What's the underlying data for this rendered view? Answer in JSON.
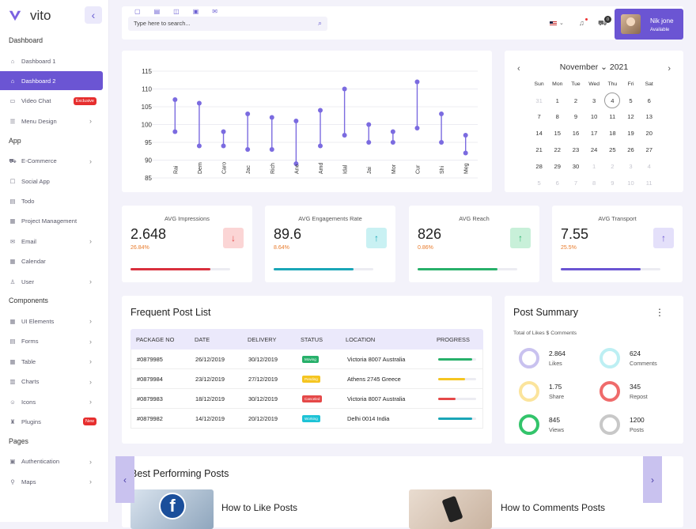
{
  "app": {
    "name": "vito"
  },
  "sidebar": {
    "sections": [
      {
        "title": "Dashboard",
        "items": [
          {
            "label": "Dashboard 1"
          },
          {
            "label": "Dashboard 2",
            "active": true
          },
          {
            "label": "Video Chat",
            "badge": "Exclusive"
          },
          {
            "label": "Menu Design",
            "chevron": true
          }
        ]
      },
      {
        "title": "App",
        "items": [
          {
            "label": "E-Commerce",
            "chevron": true
          },
          {
            "label": "Social App"
          },
          {
            "label": "Todo"
          },
          {
            "label": "Project Management"
          },
          {
            "label": "Email",
            "chevron": true
          },
          {
            "label": "Calendar"
          },
          {
            "label": "User",
            "chevron": true
          }
        ]
      },
      {
        "title": "Components",
        "items": [
          {
            "label": "UI Elements",
            "chevron": true
          },
          {
            "label": "Forms",
            "chevron": true
          },
          {
            "label": "Table",
            "chevron": true
          },
          {
            "label": "Charts",
            "chevron": true
          },
          {
            "label": "Icons",
            "chevron": true
          },
          {
            "label": "Plugins",
            "badge": "New"
          }
        ]
      },
      {
        "title": "Pages",
        "items": [
          {
            "label": "Authentication",
            "chevron": true
          },
          {
            "label": "Maps",
            "chevron": true
          }
        ]
      }
    ]
  },
  "topbar": {
    "search_placeholder": "Type here to search...",
    "cart_count": "0",
    "user": {
      "name": "Nik jone",
      "role": "Available"
    }
  },
  "chart_data": {
    "type": "dumbbell",
    "categories": [
      "Rai",
      "Dem",
      "Caro",
      "Jac",
      "Rich",
      "Ane",
      "Amd",
      "Idal",
      "Jai",
      "Mor",
      "Cur",
      "Shi",
      "Meg"
    ],
    "low": [
      98,
      94,
      94,
      93,
      93,
      89,
      94,
      97,
      95,
      95,
      99,
      95,
      92
    ],
    "high": [
      107,
      106,
      98,
      103,
      102,
      101,
      104,
      110,
      100,
      98,
      112,
      103,
      97
    ],
    "y_ticks": [
      85,
      90,
      95,
      100,
      105,
      110,
      115
    ],
    "ylim": [
      85,
      117
    ],
    "color": "#7b6be0",
    "grid": true
  },
  "calendar": {
    "month": "November",
    "year": "2021",
    "dow": [
      "Sun",
      "Mon",
      "Tue",
      "Wed",
      "Thu",
      "Fri",
      "Sat"
    ],
    "days": [
      [
        "31",
        1
      ],
      [
        "1",
        0
      ],
      [
        "2",
        0
      ],
      [
        "3",
        0
      ],
      [
        "4",
        2
      ],
      [
        "5",
        0
      ],
      [
        "6",
        0
      ],
      [
        "7",
        0
      ],
      [
        "8",
        0
      ],
      [
        "9",
        0
      ],
      [
        "10",
        0
      ],
      [
        "11",
        0
      ],
      [
        "12",
        0
      ],
      [
        "13",
        0
      ],
      [
        "14",
        0
      ],
      [
        "15",
        0
      ],
      [
        "16",
        0
      ],
      [
        "17",
        0
      ],
      [
        "18",
        0
      ],
      [
        "19",
        0
      ],
      [
        "20",
        0
      ],
      [
        "21",
        0
      ],
      [
        "22",
        0
      ],
      [
        "23",
        0
      ],
      [
        "24",
        0
      ],
      [
        "25",
        0
      ],
      [
        "26",
        0
      ],
      [
        "27",
        0
      ],
      [
        "28",
        0
      ],
      [
        "29",
        0
      ],
      [
        "30",
        0
      ],
      [
        "1",
        1
      ],
      [
        "2",
        1
      ],
      [
        "3",
        1
      ],
      [
        "4",
        1
      ],
      [
        "5",
        1
      ],
      [
        "6",
        1
      ],
      [
        "7",
        1
      ],
      [
        "8",
        1
      ],
      [
        "9",
        1
      ],
      [
        "10",
        1
      ],
      [
        "11",
        1
      ]
    ]
  },
  "stats": [
    {
      "title": "AVG Impressions",
      "value": "2.648",
      "pct": "26.84%",
      "arrow": "↓",
      "icon_bg": "#fbd5d5",
      "icon_color": "#e54848",
      "bar": "#d9303e",
      "fill": 0.8
    },
    {
      "title": "AVG Engagements Rate",
      "value": "89.6",
      "pct": "8.64%",
      "arrow": "↑",
      "icon_bg": "#c9f1f3",
      "icon_color": "#1aa6b7",
      "bar": "#1aa6b7",
      "fill": 0.8
    },
    {
      "title": "AVG Reach",
      "value": "826",
      "pct": "0.86%",
      "arrow": "↑",
      "icon_bg": "#c8f0d9",
      "icon_color": "#27b06a",
      "bar": "#27b06a",
      "fill": 0.8
    },
    {
      "title": "AVG Transport",
      "value": "7.55",
      "pct": "25.5%",
      "arrow": "↑",
      "icon_bg": "#e4e0fa",
      "icon_color": "#6b55d3",
      "bar": "#6b55d3",
      "fill": 0.8
    }
  ],
  "posts": {
    "title": "Frequent Post List",
    "headers": [
      "PACKAGE NO",
      "DATE",
      "DELIVERY",
      "STATUS",
      "LOCATION",
      "PROGRESS"
    ],
    "rows": [
      {
        "pkg": "#0879985",
        "date": "26/12/2019",
        "delivery": "30/12/2019",
        "status": "Moving",
        "status_color": "#27b06a",
        "location": "Victoria 8007 Australia",
        "prog_color": "#27b06a",
        "prog": 0.9
      },
      {
        "pkg": "#0879984",
        "date": "23/12/2019",
        "delivery": "27/12/2019",
        "status": "Pending",
        "status_color": "#f5c521",
        "location": "Athens 2745 Greece",
        "prog_color": "#f5c521",
        "prog": 0.7
      },
      {
        "pkg": "#0879983",
        "date": "18/12/2019",
        "delivery": "30/12/2019",
        "status": "Canceled",
        "status_color": "#e54848",
        "location": "Victoria 8007 Australia",
        "prog_color": "#e54848",
        "prog": 0.45
      },
      {
        "pkg": "#0879982",
        "date": "14/12/2019",
        "delivery": "20/12/2019",
        "status": "Working",
        "status_color": "#1ec3d6",
        "location": "Delhi 0014 India",
        "prog_color": "#1aa6b7",
        "prog": 0.9
      }
    ]
  },
  "summary": {
    "title": "Post Summary",
    "subtitle": "Total of Likes $ Comments",
    "items": [
      {
        "value": "2.864",
        "label": "Likes",
        "color": "#c9c2ef"
      },
      {
        "value": "624",
        "label": "Comments",
        "color": "#bdeff3"
      },
      {
        "value": "1.75",
        "label": "Share",
        "color": "#fbe49c"
      },
      {
        "value": "345",
        "label": "Repost",
        "color": "#ef6b6b"
      },
      {
        "value": "845",
        "label": "Views",
        "color": "#33c46b"
      },
      {
        "value": "1200",
        "label": "Posts",
        "color": "#c8c8c8"
      }
    ]
  },
  "best": {
    "title": "Best Performing Posts",
    "cards": [
      "How to Like Posts",
      "How to Comments Posts"
    ]
  }
}
